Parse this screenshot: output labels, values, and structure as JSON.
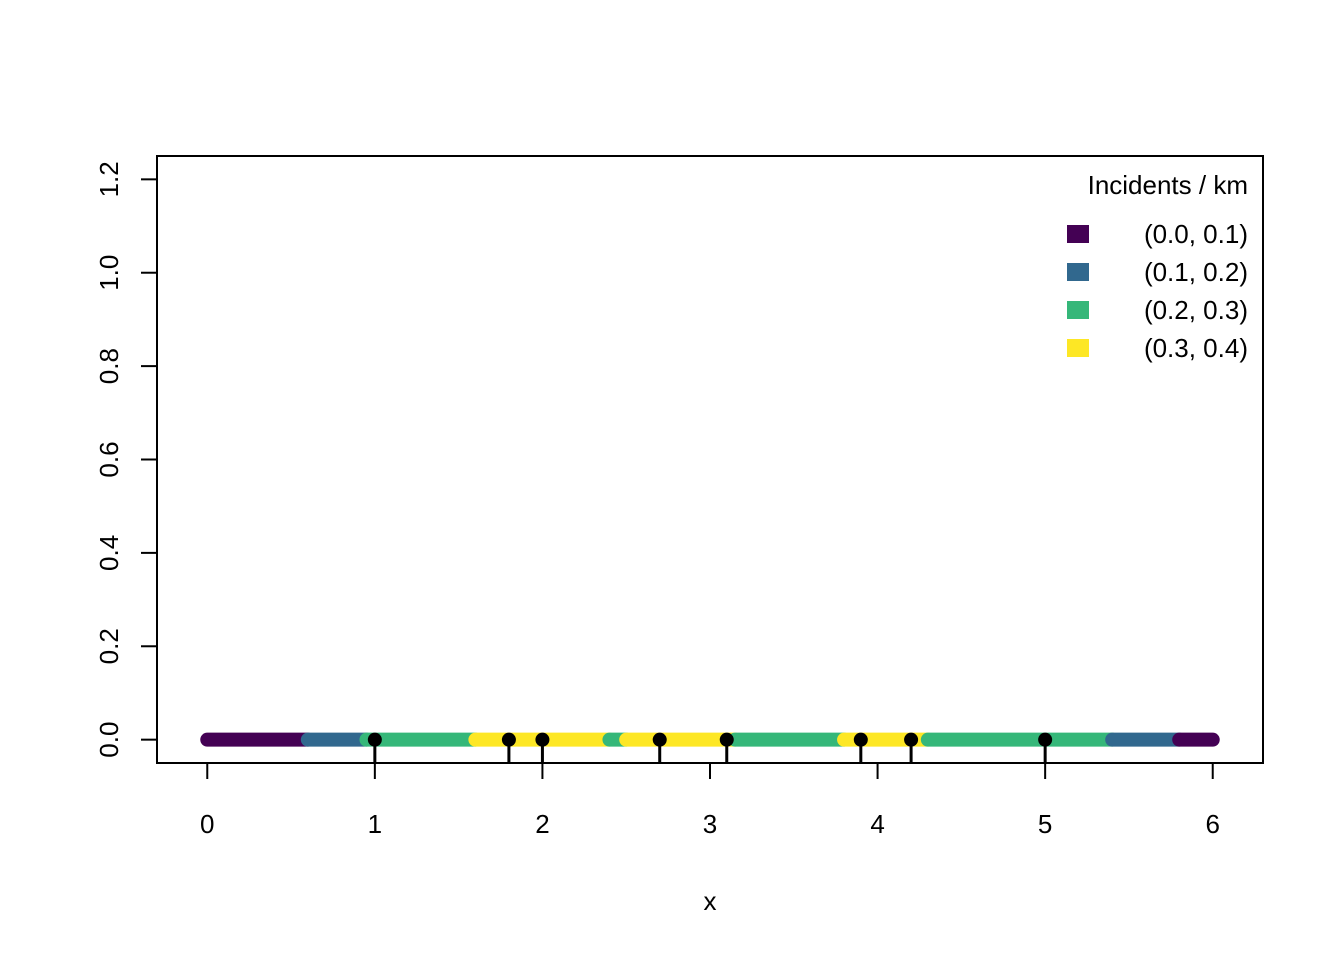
{
  "chart_data": {
    "type": "line",
    "title": "",
    "xlabel": "x",
    "ylabel": "",
    "xlim": [
      -0.3,
      6.3
    ],
    "ylim": [
      -0.05,
      1.25
    ],
    "x_ticks": [
      0,
      1,
      2,
      3,
      4,
      5,
      6
    ],
    "x_tick_labels": [
      "0",
      "1",
      "2",
      "3",
      "4",
      "5",
      "6"
    ],
    "y_ticks": [
      0.0,
      0.2,
      0.4,
      0.6,
      0.8,
      1.0,
      1.2
    ],
    "y_tick_labels": [
      "0.0",
      "0.2",
      "0.4",
      "0.6",
      "0.8",
      "1.0",
      "1.2"
    ],
    "grid": false,
    "legend": {
      "title": "Incidents / km",
      "placement": "top-right",
      "entries": [
        {
          "label": "(0.0, 0.1)",
          "color": "#440154"
        },
        {
          "label": "(0.1, 0.2)",
          "color": "#31688E"
        },
        {
          "label": "(0.2, 0.3)",
          "color": "#35B779"
        },
        {
          "label": "(0.3, 0.4)",
          "color": "#FDE725"
        }
      ]
    },
    "segments": [
      {
        "x0": 0.0,
        "x1": 0.6,
        "class": 0
      },
      {
        "x0": 0.6,
        "x1": 0.95,
        "class": 1
      },
      {
        "x0": 0.95,
        "x1": 1.6,
        "class": 2
      },
      {
        "x0": 1.6,
        "x1": 2.4,
        "class": 3
      },
      {
        "x0": 2.4,
        "x1": 2.5,
        "class": 2
      },
      {
        "x0": 2.5,
        "x1": 3.15,
        "class": 3
      },
      {
        "x0": 3.15,
        "x1": 3.8,
        "class": 2
      },
      {
        "x0": 3.8,
        "x1": 4.3,
        "class": 3
      },
      {
        "x0": 4.3,
        "x1": 5.4,
        "class": 2
      },
      {
        "x0": 5.4,
        "x1": 5.8,
        "class": 1
      },
      {
        "x0": 5.8,
        "x1": 6.0,
        "class": 0
      }
    ],
    "events": [
      1.0,
      1.8,
      2.0,
      2.7,
      3.1,
      3.9,
      4.2,
      5.0
    ],
    "event_y": 0.0
  }
}
